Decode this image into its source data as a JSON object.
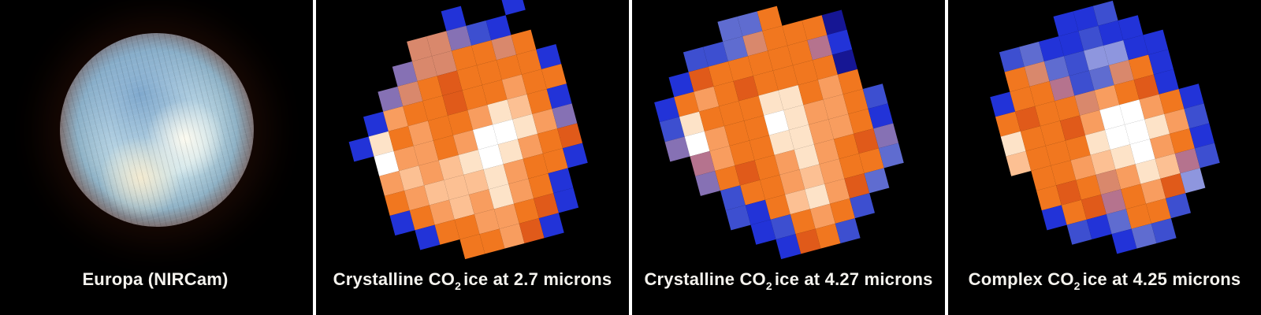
{
  "background": "#000000",
  "divider_color": "#ffffff",
  "palette": {
    "B": "#2233d8",
    "G": "#3d4fd0",
    "N": "#161694",
    "T": "#5f6cd0",
    "t": "#8e96de",
    "P": "#8671b4",
    "M": "#b5738e",
    "S": "#d9886c",
    "O": "#f1771f",
    "R": "#e05a1a",
    "L": "#f89d5f",
    "l": "#fcc093",
    "C": "#fde3c8",
    "W": "#ffffff",
    ".": ""
  },
  "europa_disk_colors": {
    "hot_spot": "#fdfbf0",
    "cream_patch": "#f3ead0",
    "blue_tint": "#7fa8cd",
    "pale_center": "#c9e2ea",
    "mid_steel": "#8fb2c6",
    "rim_brown": "#6b3526",
    "edge_dark": "#150a06"
  },
  "panels": [
    {
      "id": "europa-nircam",
      "type": "smooth",
      "label_prefix": "Europa (NIRCam)",
      "label_sub": "",
      "label_suffix": ""
    },
    {
      "id": "crystalline-co2-2.7",
      "type": "pixel",
      "rotation_deg": -15,
      "label_prefix": "Crystalline CO",
      "label_sub": "2",
      "label_suffix": "ice at 2.7 microns",
      "pixels": [
        "......B..B..",
        "....SSPGB...",
        "...PSSOOSO..",
        "..PSOROOOOB.",
        ".BLOOROOLOO.",
        "BCOLOOLClOB.",
        ".WLLOLWWCLP.",
        ".LlLlCWCLOR.",
        ".OLlllCLOOB.",
        ".BOLlLCLOB..",
        "..BOOLLORB..",
        "....OOLRB..."
      ]
    },
    {
      "id": "crystalline-co2-4.27",
      "type": "pixel",
      "rotation_deg": -15,
      "label_prefix": "Crystalline CO",
      "label_sub": "2",
      "label_suffix": "ice at 4.27 microns",
      "pixels": [
        "....TTO.....",
        "..GGTSOOON..",
        ".BROOOOOMB..",
        "BOLOROOOON..",
        "GCOOOCCOLO..",
        "PWLOOWCLLOG.",
        ".MLOOCCLLOB.",
        ".POROLCLORP.",
        "..GOOLlLOOT.",
        "..GBOlCLRT..",
        "...BGOLOG...",
        "....BROG...."
      ]
    },
    {
      "id": "complex-co2-4.25",
      "type": "pixel",
      "rotation_deg": -15,
      "label_prefix": "Complex CO",
      "label_sub": "2",
      "label_suffix": "ice at 4.25 microns",
      "pixels": [
        ".....BBG....",
        "..GTBBGBB...",
        "..OSTGttBB..",
        ".BOOMGTSOB..",
        ".OROOSLORB..",
        ".COORLWWLOB.",
        ".lOOOCWWCLG.",
        "..OOLlCWLOB.",
        "..OROSLClMG.",
        "..BORMOLRt..",
        "...GBTOOG...",
        ".....BTG...."
      ]
    }
  ]
}
